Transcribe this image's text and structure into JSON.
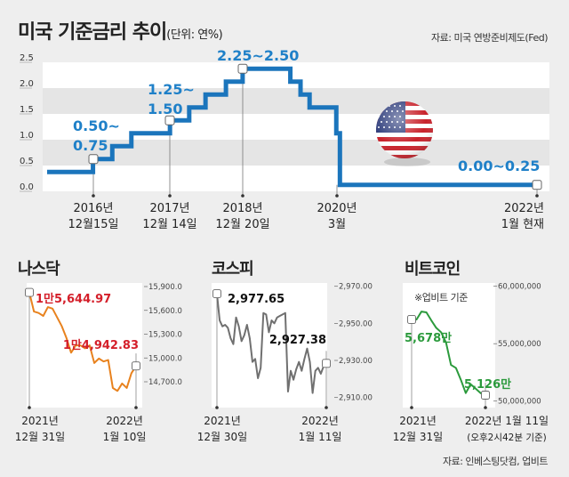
{
  "header": {
    "title": "미국 기준금리 추이",
    "unit": "(단위: 연%)",
    "source": "자료: 미국 연방준비제도(Fed)"
  },
  "colors": {
    "rate_line": "#1b75bc",
    "rate_label": "#1f80c8",
    "nasdaq": "#e8821e",
    "nasdaq_label": "#d41f2a",
    "kospi": "#707070",
    "bitcoin": "#2b9a3c",
    "band_gray": "#e5e5e5",
    "band_white": "#ffffff"
  },
  "chart_data": [
    {
      "type": "line",
      "title": "미국 기준금리 추이",
      "ylabel": "(단위: 연%)",
      "ylim": [
        0,
        2.5
      ],
      "yticks": [
        "0.0",
        "0.5",
        "1.0",
        "1.5",
        "2.0",
        "2.5"
      ],
      "step": true,
      "steps": [
        {
          "from": "2016-06",
          "range": [
            0.25,
            0.5
          ]
        },
        {
          "from": "2016-12-15",
          "range": [
            0.5,
            0.75
          ]
        },
        {
          "from": "2017-03-15",
          "range": [
            0.75,
            1.0
          ]
        },
        {
          "from": "2017-06-14",
          "range": [
            1.0,
            1.25
          ]
        },
        {
          "from": "2017-12-14",
          "range": [
            1.25,
            1.5
          ]
        },
        {
          "from": "2018-03-21",
          "range": [
            1.5,
            1.75
          ]
        },
        {
          "from": "2018-06-13",
          "range": [
            1.75,
            2.0
          ]
        },
        {
          "from": "2018-09-26",
          "range": [
            2.0,
            2.25
          ]
        },
        {
          "from": "2018-12-20",
          "range": [
            2.25,
            2.5
          ]
        },
        {
          "from": "2019-07-31",
          "range": [
            2.0,
            2.25
          ]
        },
        {
          "from": "2019-09-18",
          "range": [
            1.75,
            2.0
          ]
        },
        {
          "from": "2019-10-30",
          "range": [
            1.5,
            1.75
          ]
        },
        {
          "from": "2020-03-03",
          "range": [
            1.0,
            1.25
          ]
        },
        {
          "from": "2020-03-15",
          "range": [
            0.0,
            0.25
          ]
        },
        {
          "from": "2022-01",
          "range": [
            0.0,
            0.25
          ]
        }
      ],
      "annotations": [
        {
          "date": "2016-12-15",
          "line1": "0.50~",
          "line2": "0.75",
          "x_label1": "2016년",
          "x_label2": "12월15일"
        },
        {
          "date": "2017-12-14",
          "line1": "1.25~",
          "line2": "1.50",
          "x_label1": "2017년",
          "x_label2": "12월 14일"
        },
        {
          "date": "2018-12-20",
          "line1": "2.25~2.50",
          "line2": "",
          "x_label1": "2018년",
          "x_label2": "12월 20일"
        },
        {
          "date": "2020-03",
          "line1": "",
          "line2": "",
          "x_label1": "2020년",
          "x_label2": "3월"
        },
        {
          "date": "2022-01",
          "line1": "0.00~0.25",
          "line2": "",
          "x_label1": "2022년",
          "x_label2": "1월 현재"
        }
      ]
    },
    {
      "type": "line",
      "title": "나스닥",
      "ylim": [
        14600,
        15900
      ],
      "yticks": [
        "15,900.0",
        "15,600.0",
        "15,300.0",
        "15,000.0",
        "14,700.0"
      ],
      "ytick_values": [
        15900,
        15600,
        15300,
        15000,
        14700
      ],
      "values": [
        15826,
        15585,
        15567,
        15530,
        15641,
        15622,
        15511,
        15400,
        15252,
        15067,
        15159,
        15159,
        15122,
        15159,
        14937,
        14993,
        14956,
        14974,
        14622,
        14585,
        14678,
        14622,
        14807,
        14900
      ],
      "start_label": "1만5,644.97",
      "end_label": "1만4,942.83",
      "start_date": [
        "2021년",
        "12월 31일"
      ],
      "end_date": [
        "2022년",
        "1월 10일"
      ]
    },
    {
      "type": "line",
      "title": "코스피",
      "ylim": [
        2905,
        2970
      ],
      "yticks": [
        "2,970.00",
        "2,950.00",
        "2,930.00",
        "2,910.00"
      ],
      "ytick_values": [
        2970,
        2950,
        2930,
        2910
      ],
      "values": [
        2966,
        2951.6,
        2948.4,
        2949.2,
        2947.6,
        2942,
        2938.8,
        2953.2,
        2948.4,
        2940.4,
        2943.6,
        2949.2,
        2942,
        2929.2,
        2930.8,
        2920.4,
        2926,
        2955.6,
        2954.8,
        2945.2,
        2951.6,
        2950,
        2953.2,
        2954,
        2954.8,
        2955.6,
        2913.2,
        2924.4,
        2919.6,
        2925.2,
        2929.2,
        2924.4,
        2930.8,
        2936.4,
        2929.2,
        2912.4,
        2924.4,
        2926,
        2922.8,
        2926.8,
        2928.4
      ],
      "start_label": "2,977.65",
      "end_label": "2,927.38",
      "start_date": [
        "2021년",
        "12월 30일"
      ],
      "end_date": [
        "2022년",
        "1월 11일"
      ]
    },
    {
      "type": "line",
      "title": "비트코인",
      "note": "※업비트 기준",
      "ylim": [
        50000000,
        60000000
      ],
      "yticks": [
        "60,000,000",
        "55,000,000",
        "50,000,000"
      ],
      "ytick_values": [
        60000000,
        55000000,
        50000000
      ],
      "values": [
        57110000,
        57110000,
        57800000,
        57730000,
        57030000,
        56380000,
        55990000,
        55090000,
        53150000,
        52890000,
        51860000,
        50700000,
        51470000,
        51090000,
        50700000,
        50520000
      ],
      "start_label": "5,678만",
      "end_label": "5,126만",
      "start_date": [
        "2021년",
        "12월 31일"
      ],
      "end_date": [
        "2022년 1월 11일",
        "(오후2시42분 기준)"
      ]
    }
  ],
  "footer": {
    "source": "자료: 인베스팅닷컴, 업비트"
  }
}
